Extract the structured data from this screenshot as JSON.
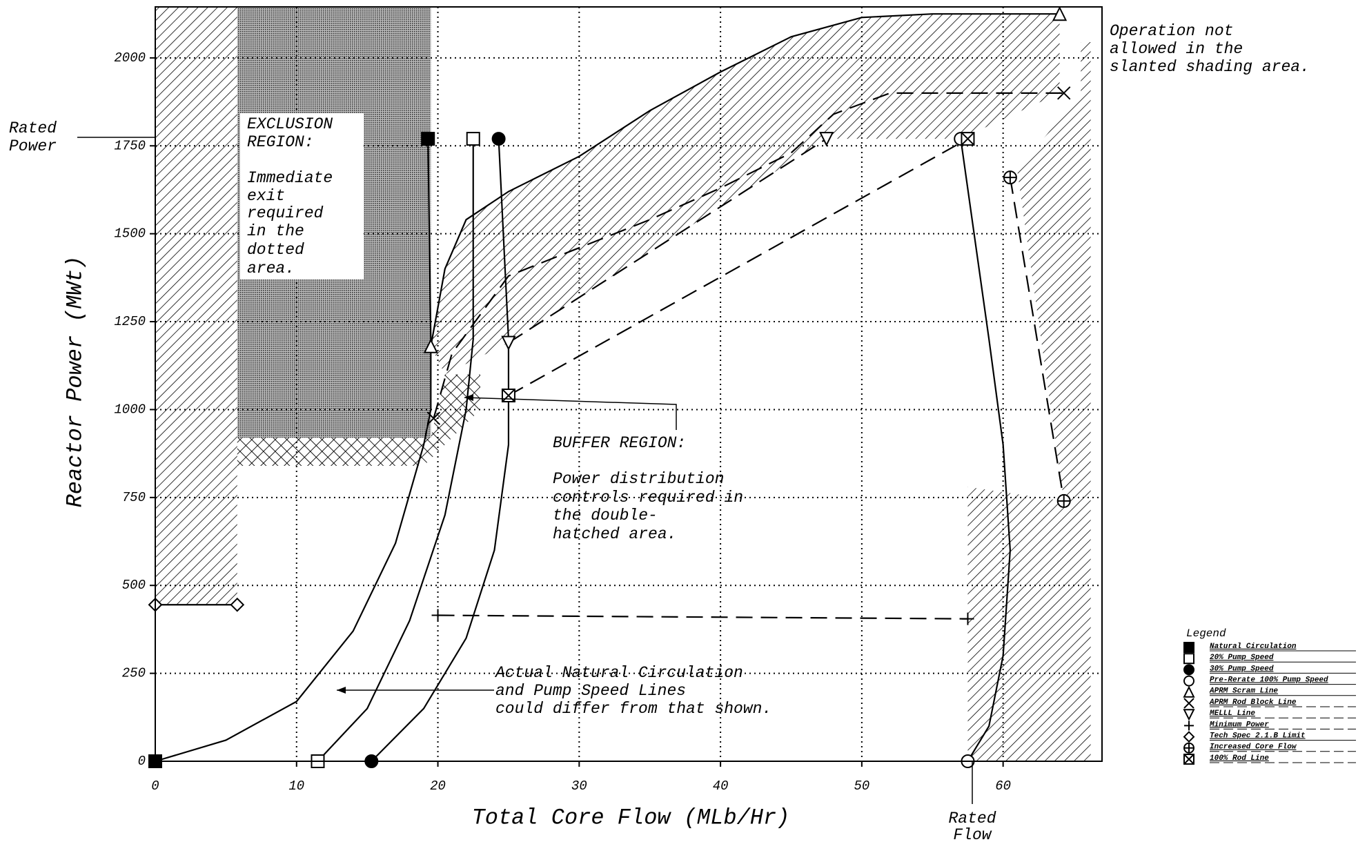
{
  "chart_data": {
    "type": "line",
    "xlabel": "Total Core Flow (MLb/Hr)",
    "ylabel": "Reactor Power (MWt)",
    "xlim": [
      0,
      67
    ],
    "ylim": [
      0,
      2145
    ],
    "xticks": [
      0,
      10,
      20,
      30,
      40,
      50,
      60
    ],
    "yticks": [
      0,
      250,
      500,
      750,
      1000,
      1250,
      1500,
      1750,
      2000
    ],
    "grid": true,
    "grid_style": "dotted",
    "color": "#000000",
    "rated_power": [
      "Rated",
      "Power"
    ],
    "rated_flow": [
      "Rated",
      "Flow"
    ],
    "note_operation": [
      "Operation not",
      "allowed in the",
      "slanted shading area."
    ],
    "exclusion_region": {
      "title": [
        "EXCLUSION",
        "REGION:"
      ],
      "text": [
        "Immediate",
        "exit",
        "required",
        "in the",
        "dotted",
        "area."
      ]
    },
    "buffer_region": {
      "title": "BUFFER REGION:",
      "text": [
        "Power distribution",
        "controls required in",
        "the double-",
        "hatched area."
      ]
    },
    "note_natural": [
      "Actual Natural Circulation",
      "and Pump Speed Lines",
      "could differ from that shown."
    ],
    "legend_title": "Legend",
    "legend": "lower right",
    "series": [
      {
        "name": "Natural Circulation",
        "marker": "square-filled",
        "dashed": false,
        "x": [
          0,
          5,
          10,
          14,
          17,
          19,
          19.5,
          19.5,
          19.3
        ],
        "values": [
          0,
          60,
          170,
          370,
          620,
          900,
          1000,
          1200,
          1770
        ]
      },
      {
        "name": "20% Pump Speed",
        "marker": "square",
        "dashed": false,
        "x": [
          11.5,
          15,
          18,
          20.5,
          22,
          22.5,
          22.5
        ],
        "values": [
          0,
          150,
          400,
          700,
          1000,
          1200,
          1770
        ]
      },
      {
        "name": "30% Pump Speed",
        "marker": "circle-filled",
        "dashed": false,
        "x": [
          15.3,
          19,
          22,
          24,
          25,
          25,
          24.3
        ],
        "values": [
          0,
          150,
          350,
          600,
          900,
          1200,
          1770
        ]
      },
      {
        "name": "Pre-Rerate 100% Pump Speed",
        "marker": "circle",
        "dashed": false,
        "x": [
          57.5,
          59,
          60,
          60.5,
          60,
          59,
          57
        ],
        "values": [
          0,
          100,
          300,
          600,
          900,
          1200,
          1770
        ]
      },
      {
        "name": "APRM Scram Line",
        "marker": "triangle",
        "dashed": false,
        "x": [
          19.5,
          20.5,
          22,
          25,
          30,
          35,
          40,
          45,
          50,
          55,
          64
        ],
        "values": [
          1180,
          1400,
          1540,
          1620,
          1720,
          1850,
          1960,
          2060,
          2115,
          2125,
          2125
        ]
      },
      {
        "name": "APRM Rod Block Line",
        "marker": "x",
        "dashed": true,
        "x": [
          19.7,
          21,
          25,
          30,
          35,
          40,
          45,
          48,
          52,
          64.3
        ],
        "values": [
          975,
          1160,
          1380,
          1460,
          1540,
          1630,
          1730,
          1840,
          1900,
          1900
        ]
      },
      {
        "name": "MELLL Line",
        "marker": "triangle-down",
        "dashed": true,
        "x": [
          25,
          47.5
        ],
        "values": [
          1190,
          1770
        ]
      },
      {
        "name": "Minimum Power",
        "marker": "plus",
        "dashed": true,
        "x": [
          20,
          57.5
        ],
        "values": [
          415,
          405
        ]
      },
      {
        "name": "Tech Spec 2.1.B Limit",
        "marker": "diamond",
        "dashed": false,
        "x": [
          0,
          5.8
        ],
        "values": [
          445,
          445
        ]
      },
      {
        "name": "Increased Core Flow",
        "marker": "circle-plus",
        "dashed": true,
        "x": [
          60.5,
          64.3
        ],
        "values": [
          1660,
          740
        ]
      },
      {
        "name": "100% Rod Line",
        "marker": "square-x",
        "dashed": true,
        "x": [
          25,
          57.5
        ],
        "values": [
          1040,
          1770
        ]
      }
    ]
  }
}
